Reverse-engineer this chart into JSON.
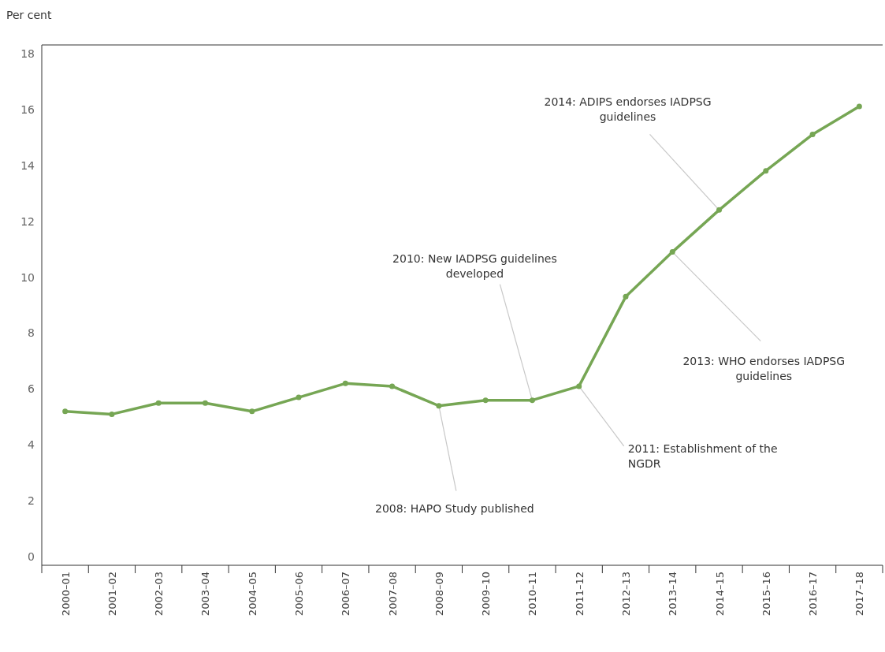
{
  "chart_data": {
    "type": "line",
    "ylabel": "Per cent",
    "categories": [
      "2000–01",
      "2001–02",
      "2002–03",
      "2003–04",
      "2004–05",
      "2005–06",
      "2006–07",
      "2007–08",
      "2008–09",
      "2009–10",
      "2010–11",
      "2011–12",
      "2012–13",
      "2013–14",
      "2014–15",
      "2015–16",
      "2016–17",
      "2017–18"
    ],
    "series": [
      {
        "color": "#76a654",
        "values": [
          5.2,
          5.1,
          5.5,
          5.5,
          5.2,
          5.7,
          6.2,
          6.1,
          5.4,
          5.6,
          5.6,
          6.1,
          9.3,
          10.9,
          12.4,
          13.8,
          15.1,
          16.1
        ]
      }
    ],
    "ylim": [
      -0.3,
      18.3
    ],
    "yticks": [
      0,
      2,
      4,
      6,
      8,
      10,
      12,
      14,
      16,
      18
    ],
    "grid": false,
    "marker": "circle",
    "line_style": "solid",
    "annotations": [
      {
        "text": "2008: HAPO Study published",
        "x": "2008–09",
        "y": 5.4
      },
      {
        "text": "2010: New IADPSG guidelines developed",
        "x": "2010–11",
        "y": 5.6
      },
      {
        "text": "2011: Establishment of the NGDR",
        "x": "2011–12",
        "y": 6.1
      },
      {
        "text": "2013: WHO endorses IADPSG guidelines",
        "x": "2013–14",
        "y": 10.9
      },
      {
        "text": "2014: ADIPS endorses IADPSG guidelines",
        "x": "2014–15",
        "y": 12.4
      }
    ]
  }
}
